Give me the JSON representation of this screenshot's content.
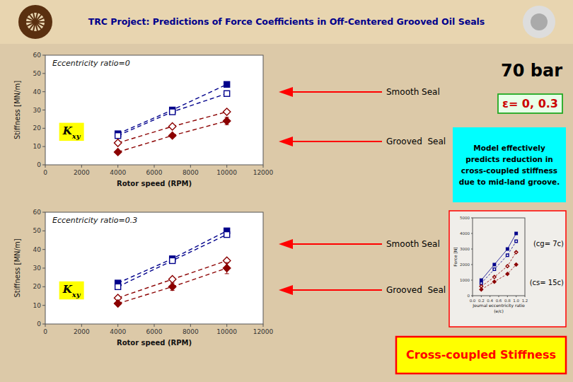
{
  "title": "TRC Project: Predictions of Force Coefficients in Off-Centered Grooved Oil Seals",
  "annotations": [
    "70 bar",
    "ε= 0, 0.3",
    "Model effectively\npredicts reduction in\ncross-coupled stiffness\ndue to mid-land groove.",
    "Smooth Seal",
    "Grooved  Seal",
    "Smooth Seal",
    "Grooved  Seal",
    "(cg= 7c)",
    "(cs= 15c)",
    "Cross-coupled Stiffness"
  ],
  "chart_data": [
    {
      "type": "line",
      "title": "Eccentricity ratio=0",
      "xlabel": "Rotor speed (RPM)",
      "ylabel": "Stiffness [MN/m]",
      "xlim": [
        0,
        12000
      ],
      "ylim": [
        0,
        60
      ],
      "xticks": [
        0,
        2000,
        4000,
        6000,
        8000,
        10000,
        12000
      ],
      "yticks": [
        0,
        10,
        20,
        30,
        40,
        50,
        60
      ],
      "annotations": [
        "Kxy"
      ],
      "x": [
        4000,
        7000,
        10000
      ],
      "series": [
        {
          "values": [
            17,
            30,
            44
          ],
          "color": "#00008b",
          "marker": "square",
          "line_style": "dashed"
        },
        {
          "values": [
            16,
            29,
            39
          ],
          "color": "#00008b",
          "marker": "square-open",
          "line_style": "dashed"
        },
        {
          "values": [
            12,
            21,
            29
          ],
          "color": "#8b0000",
          "marker": "diamond-open",
          "line_style": "dashed"
        },
        {
          "values": [
            7,
            16,
            24
          ],
          "errors": [
            0.5,
            0.5,
            2.0
          ],
          "color": "#8b0000",
          "marker": "diamond",
          "line_style": "dashed"
        }
      ]
    },
    {
      "type": "line",
      "title": "Eccentricity ratio=0.3",
      "xlabel": "Rotor speed (RPM)",
      "ylabel": "Stiffness [MN/m]",
      "xlim": [
        0,
        12000
      ],
      "ylim": [
        0,
        60
      ],
      "xticks": [
        0,
        2000,
        4000,
        6000,
        8000,
        10000,
        12000
      ],
      "yticks": [
        0,
        10,
        20,
        30,
        40,
        50,
        60
      ],
      "annotations": [
        "Kxy"
      ],
      "x": [
        4000,
        7000,
        10000
      ],
      "series": [
        {
          "values": [
            22,
            35,
            50
          ],
          "color": "#00008b",
          "marker": "square",
          "line_style": "dashed"
        },
        {
          "values": [
            20,
            34,
            48
          ],
          "color": "#00008b",
          "marker": "square-open",
          "line_style": "dashed"
        },
        {
          "values": [
            14,
            24,
            34
          ],
          "color": "#8b0000",
          "marker": "diamond-open",
          "line_style": "dashed"
        },
        {
          "values": [
            11,
            20,
            30
          ],
          "errors": [
            0.5,
            2.0,
            3.0
          ],
          "color": "#8b0000",
          "marker": "diamond",
          "line_style": "dashed"
        }
      ]
    },
    {
      "type": "line",
      "xlabel": "Journal eccentricity ratio\n(e/c)",
      "ylabel": "Force [N]",
      "xlim": [
        0,
        1.2
      ],
      "ylim": [
        0,
        5000
      ],
      "xticks": [
        {
          "value": 0,
          "label": "0.0"
        },
        {
          "value": 0.2,
          "label": "0.2"
        },
        {
          "value": 0.4,
          "label": "0.4"
        },
        {
          "value": 0.6,
          "label": "0.6"
        },
        {
          "value": 0.8,
          "label": "0.8"
        },
        {
          "value": 1.0,
          "label": "1.0"
        },
        {
          "value": 1.2,
          "label": "1.2"
        }
      ],
      "yticks": [
        0,
        1000,
        2000,
        3000,
        4000,
        5000
      ],
      "x": [
        0.2,
        0.5,
        0.8,
        1.0
      ],
      "series": [
        {
          "values": [
            1000,
            2000,
            3000,
            4000
          ],
          "color": "#00008b",
          "marker": "square",
          "line_style": "solid"
        },
        {
          "values": [
            800,
            1700,
            2600,
            3500
          ],
          "color": "#00008b",
          "marker": "square-open",
          "line_style": "dashed"
        },
        {
          "values": [
            600,
            1200,
            1900,
            2800
          ],
          "color": "#8b0000",
          "marker": "diamond-open",
          "line_style": "dashed"
        },
        {
          "values": [
            400,
            900,
            1400,
            2000
          ],
          "color": "#8b0000",
          "marker": "diamond",
          "line_style": "dashed"
        }
      ]
    }
  ]
}
